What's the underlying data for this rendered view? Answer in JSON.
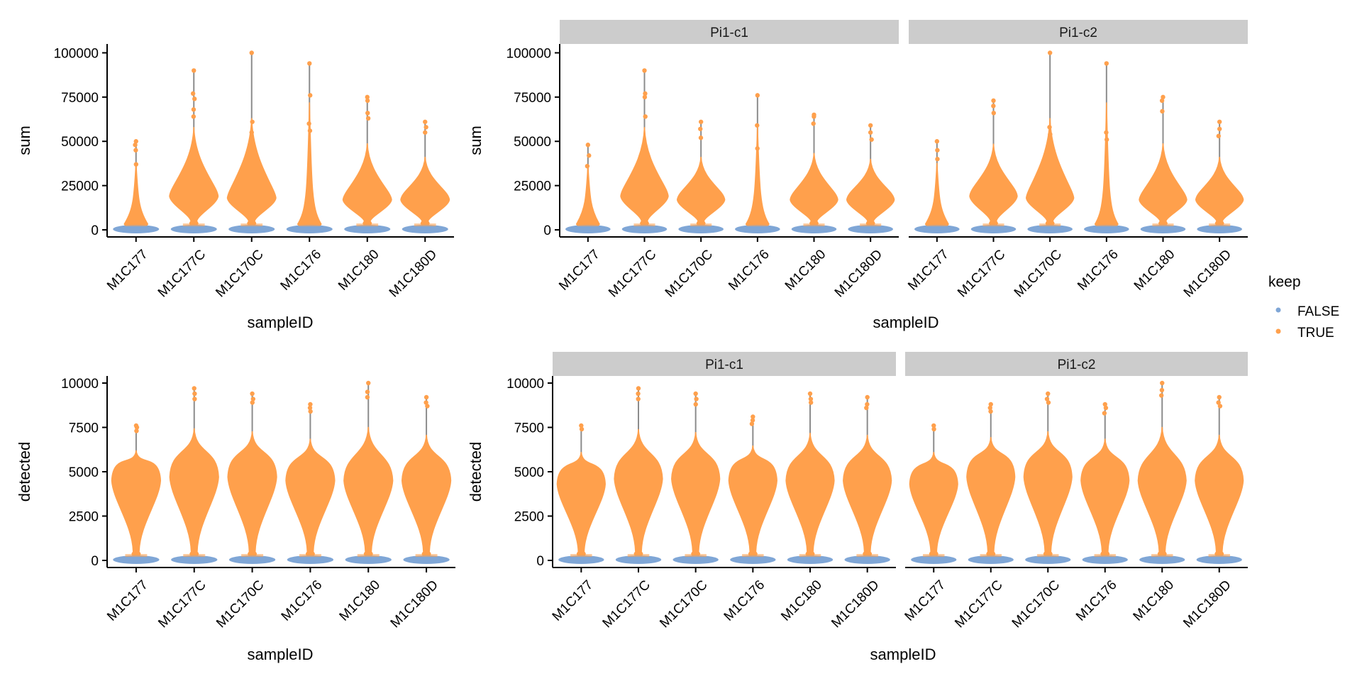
{
  "colors": {
    "false": "#7FA6D6",
    "true": "#FFA04C",
    "strip_bg": "#CCCCCC",
    "whisker": "#8C8C8C"
  },
  "legend": {
    "title": "keep",
    "items": [
      "FALSE",
      "TRUE"
    ]
  },
  "chart_data": [
    {
      "type": "violin",
      "id": "sum-all",
      "ylabel": "sum",
      "xlabel": "sampleID",
      "ylim": [
        -4000,
        105000
      ],
      "yticks": [
        0,
        25000,
        50000,
        75000,
        100000
      ],
      "facets": [
        {
          "strip": "",
          "categories": [
            "M1C177",
            "M1C177C",
            "M1C170C",
            "M1C176",
            "M1C180",
            "M1C180D"
          ],
          "medians": [
            1200,
            19000,
            18000,
            6000,
            17000,
            17000
          ],
          "maxima": [
            50000,
            90000,
            100000,
            94000,
            75000,
            61000
          ],
          "outliers": [
            [
              48000,
              45000,
              37000
            ],
            [
              77000,
              74000,
              68000,
              64000
            ],
            [
              61000,
              55000
            ],
            [
              76000,
              60000,
              56000
            ],
            [
              73000,
              66000,
              63000
            ],
            [
              58000,
              55000
            ]
          ]
        }
      ]
    },
    {
      "type": "violin",
      "id": "sum-split",
      "ylabel": "sum",
      "xlabel": "sampleID",
      "ylim": [
        -4000,
        105000
      ],
      "yticks": [
        0,
        25000,
        50000,
        75000,
        100000
      ],
      "facets": [
        {
          "strip": "Pi1-c1",
          "categories": [
            "M1C177",
            "M1C177C",
            "M1C170C",
            "M1C176",
            "M1C180",
            "M1C180D"
          ],
          "medians": [
            1200,
            19000,
            17000,
            6000,
            17000,
            17000
          ],
          "maxima": [
            48000,
            90000,
            61000,
            76000,
            65000,
            59000
          ],
          "outliers": [
            [
              42000,
              36000
            ],
            [
              77000,
              75000,
              64000
            ],
            [
              57000,
              52000
            ],
            [
              59000,
              46000
            ],
            [
              64000,
              60000
            ],
            [
              55000,
              51000
            ]
          ]
        },
        {
          "strip": "Pi1-c2",
          "categories": [
            "M1C177",
            "M1C177C",
            "M1C170C",
            "M1C176",
            "M1C180",
            "M1C180D"
          ],
          "medians": [
            1200,
            19000,
            18000,
            6000,
            17000,
            17000
          ],
          "maxima": [
            50000,
            73000,
            100000,
            94000,
            75000,
            61000
          ],
          "outliers": [
            [
              45000,
              40000
            ],
            [
              70000,
              66000
            ],
            [
              58000,
              54000
            ],
            [
              55000,
              51000
            ],
            [
              73000,
              67000
            ],
            [
              57000,
              53000
            ]
          ]
        }
      ]
    },
    {
      "type": "violin",
      "id": "detected-all",
      "ylabel": "detected",
      "xlabel": "sampleID",
      "ylim": [
        -400,
        10400
      ],
      "yticks": [
        0,
        2500,
        5000,
        7500,
        10000
      ],
      "facets": [
        {
          "strip": "",
          "categories": [
            "M1C177",
            "M1C177C",
            "M1C170C",
            "M1C176",
            "M1C180",
            "M1C180D"
          ],
          "medians": [
            4500,
            4700,
            4700,
            4500,
            4500,
            4500
          ],
          "maxima": [
            7600,
            9700,
            9400,
            8800,
            10000,
            9200
          ],
          "outliers": [
            [
              7500,
              7300
            ],
            [
              9400,
              9100
            ],
            [
              9100,
              8900
            ],
            [
              8600,
              8400
            ],
            [
              9500,
              9200
            ],
            [
              8900,
              8700
            ]
          ]
        }
      ]
    },
    {
      "type": "violin",
      "id": "detected-split",
      "ylabel": "detected",
      "xlabel": "sampleID",
      "ylim": [
        -400,
        10400
      ],
      "yticks": [
        0,
        2500,
        5000,
        7500,
        10000
      ],
      "facets": [
        {
          "strip": "Pi1-c1",
          "categories": [
            "M1C177",
            "M1C177C",
            "M1C170C",
            "M1C176",
            "M1C180",
            "M1C180D"
          ],
          "medians": [
            4300,
            4600,
            4600,
            4500,
            4500,
            4500
          ],
          "maxima": [
            7600,
            9700,
            9400,
            8100,
            9400,
            9200
          ],
          "outliers": [
            [
              7400
            ],
            [
              9400,
              9100
            ],
            [
              9100,
              8800
            ],
            [
              7900,
              7700
            ],
            [
              9100,
              8900
            ],
            [
              8800,
              8600
            ]
          ]
        },
        {
          "strip": "Pi1-c2",
          "categories": [
            "M1C177",
            "M1C177C",
            "M1C170C",
            "M1C176",
            "M1C180",
            "M1C180D"
          ],
          "medians": [
            4300,
            4700,
            4700,
            4500,
            4500,
            4500
          ],
          "maxima": [
            7600,
            8800,
            9400,
            8800,
            10000,
            9200
          ],
          "outliers": [
            [
              7400
            ],
            [
              8600,
              8400
            ],
            [
              9100,
              8900
            ],
            [
              8600,
              8300
            ],
            [
              9600,
              9300
            ],
            [
              8900,
              8700
            ]
          ]
        }
      ]
    }
  ]
}
